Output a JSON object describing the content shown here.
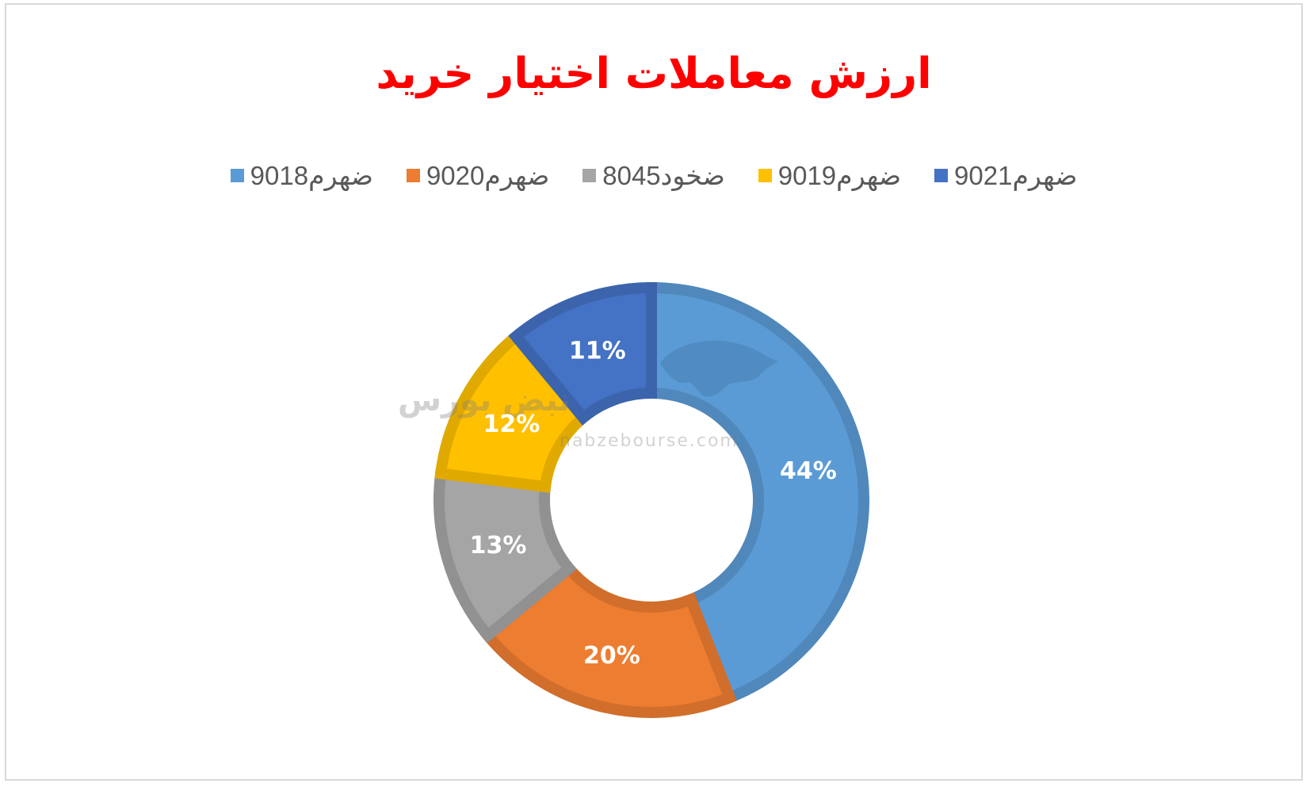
{
  "chart_data": {
    "type": "pie",
    "subtype": "donut",
    "title": "ارزش معاملات اختیار خرید",
    "legend_position": "top",
    "series": [
      {
        "name": "ضهرم9018",
        "value": 44,
        "label": "44%",
        "color": "#5b9bd5"
      },
      {
        "name": "ضهرم9020",
        "value": 20,
        "label": "20%",
        "color": "#ed7d31"
      },
      {
        "name": "ضخود8045",
        "value": 13,
        "label": "13%",
        "color": "#a5a5a5"
      },
      {
        "name": "ضهرم9019",
        "value": 12,
        "label": "12%",
        "color": "#ffc000"
      },
      {
        "name": "ضهرم9021",
        "value": 11,
        "label": "11%",
        "color": "#4472c4"
      }
    ]
  },
  "watermark": {
    "text": "nabzebourse.com",
    "logo_text": "نبض بورس"
  }
}
